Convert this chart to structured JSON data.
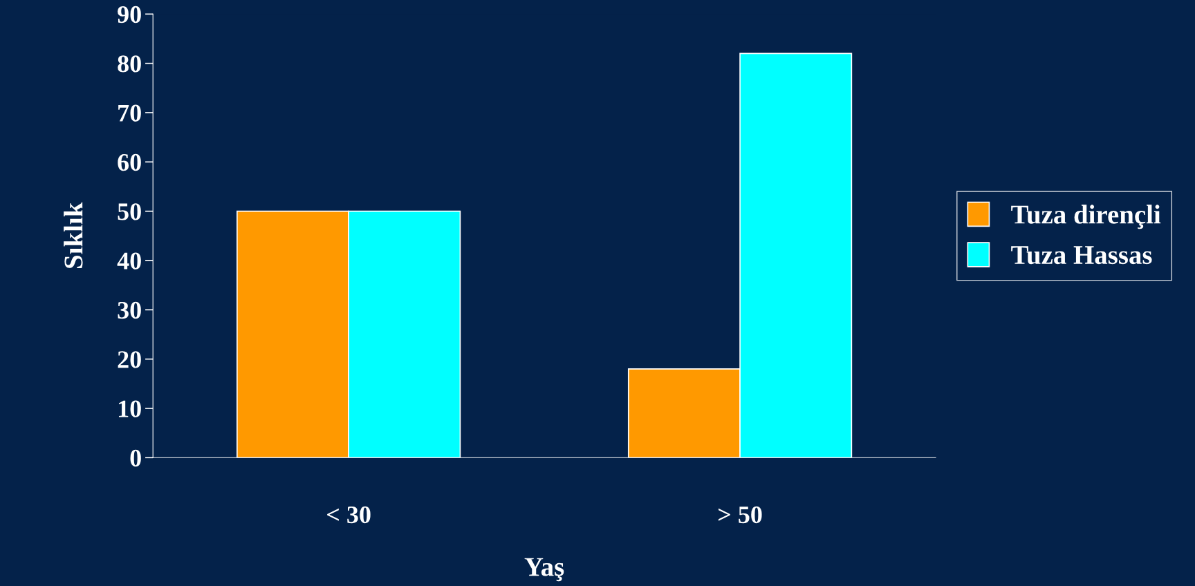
{
  "chart_data": {
    "type": "bar",
    "xlabel": "Yaş",
    "ylabel": "Sıklık",
    "categories": [
      "< 30",
      "> 50"
    ],
    "series": [
      {
        "name": "Tuza dirençli",
        "color": "#ff9900",
        "values": [
          50,
          18
        ]
      },
      {
        "name": "Tuza Hassas",
        "color": "#00ffff",
        "values": [
          50,
          82
        ]
      }
    ],
    "ylim": [
      0,
      90
    ],
    "yticks": [
      0,
      10,
      20,
      30,
      40,
      50,
      60,
      70,
      80,
      90
    ],
    "grid": false,
    "legend": "right"
  }
}
